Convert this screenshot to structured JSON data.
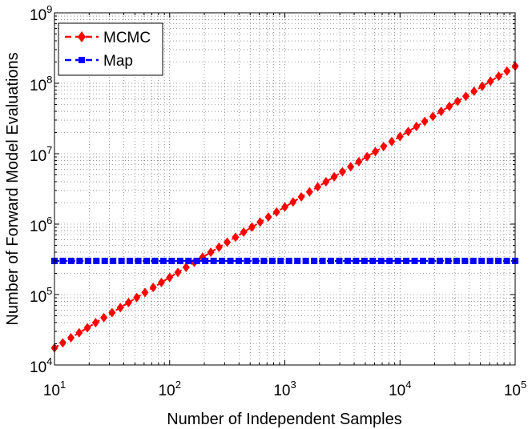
{
  "chart_data": {
    "type": "line",
    "xscale": "log",
    "yscale": "log",
    "xlim": [
      10,
      100000
    ],
    "ylim": [
      10000,
      1000000000
    ],
    "xticks": [
      10,
      100,
      1000,
      10000,
      100000
    ],
    "yticks": [
      10000,
      100000,
      1000000,
      10000000,
      100000000,
      1000000000
    ],
    "xtick_labels": [
      {
        "base": "10",
        "exp": "1"
      },
      {
        "base": "10",
        "exp": "2"
      },
      {
        "base": "10",
        "exp": "3"
      },
      {
        "base": "10",
        "exp": "4"
      },
      {
        "base": "10",
        "exp": "5"
      }
    ],
    "ytick_labels": [
      {
        "base": "10",
        "exp": "4"
      },
      {
        "base": "10",
        "exp": "5"
      },
      {
        "base": "10",
        "exp": "6"
      },
      {
        "base": "10",
        "exp": "7"
      },
      {
        "base": "10",
        "exp": "8"
      },
      {
        "base": "10",
        "exp": "9"
      }
    ],
    "xlabel": "Number of Independent Samples",
    "ylabel": "Number of Forward Model Evaluations",
    "grid": true,
    "grid_style": "dotted",
    "legend_position": "top-left",
    "series": [
      {
        "name": "MCMC",
        "color": "#ff0000",
        "marker": "diamond",
        "line": "dashed",
        "relation": "y = 1750 * x",
        "x_start": 10,
        "x_end": 100000,
        "n_points": 57,
        "y_start": 17500,
        "y_end": 175000000
      },
      {
        "name": "Map",
        "color": "#0000ff",
        "marker": "square",
        "line": "dashed",
        "relation": "y = 300000 (constant)",
        "x_start": 10,
        "x_end": 100000,
        "n_points": 56,
        "y_start": 300000,
        "y_end": 300000
      }
    ]
  }
}
